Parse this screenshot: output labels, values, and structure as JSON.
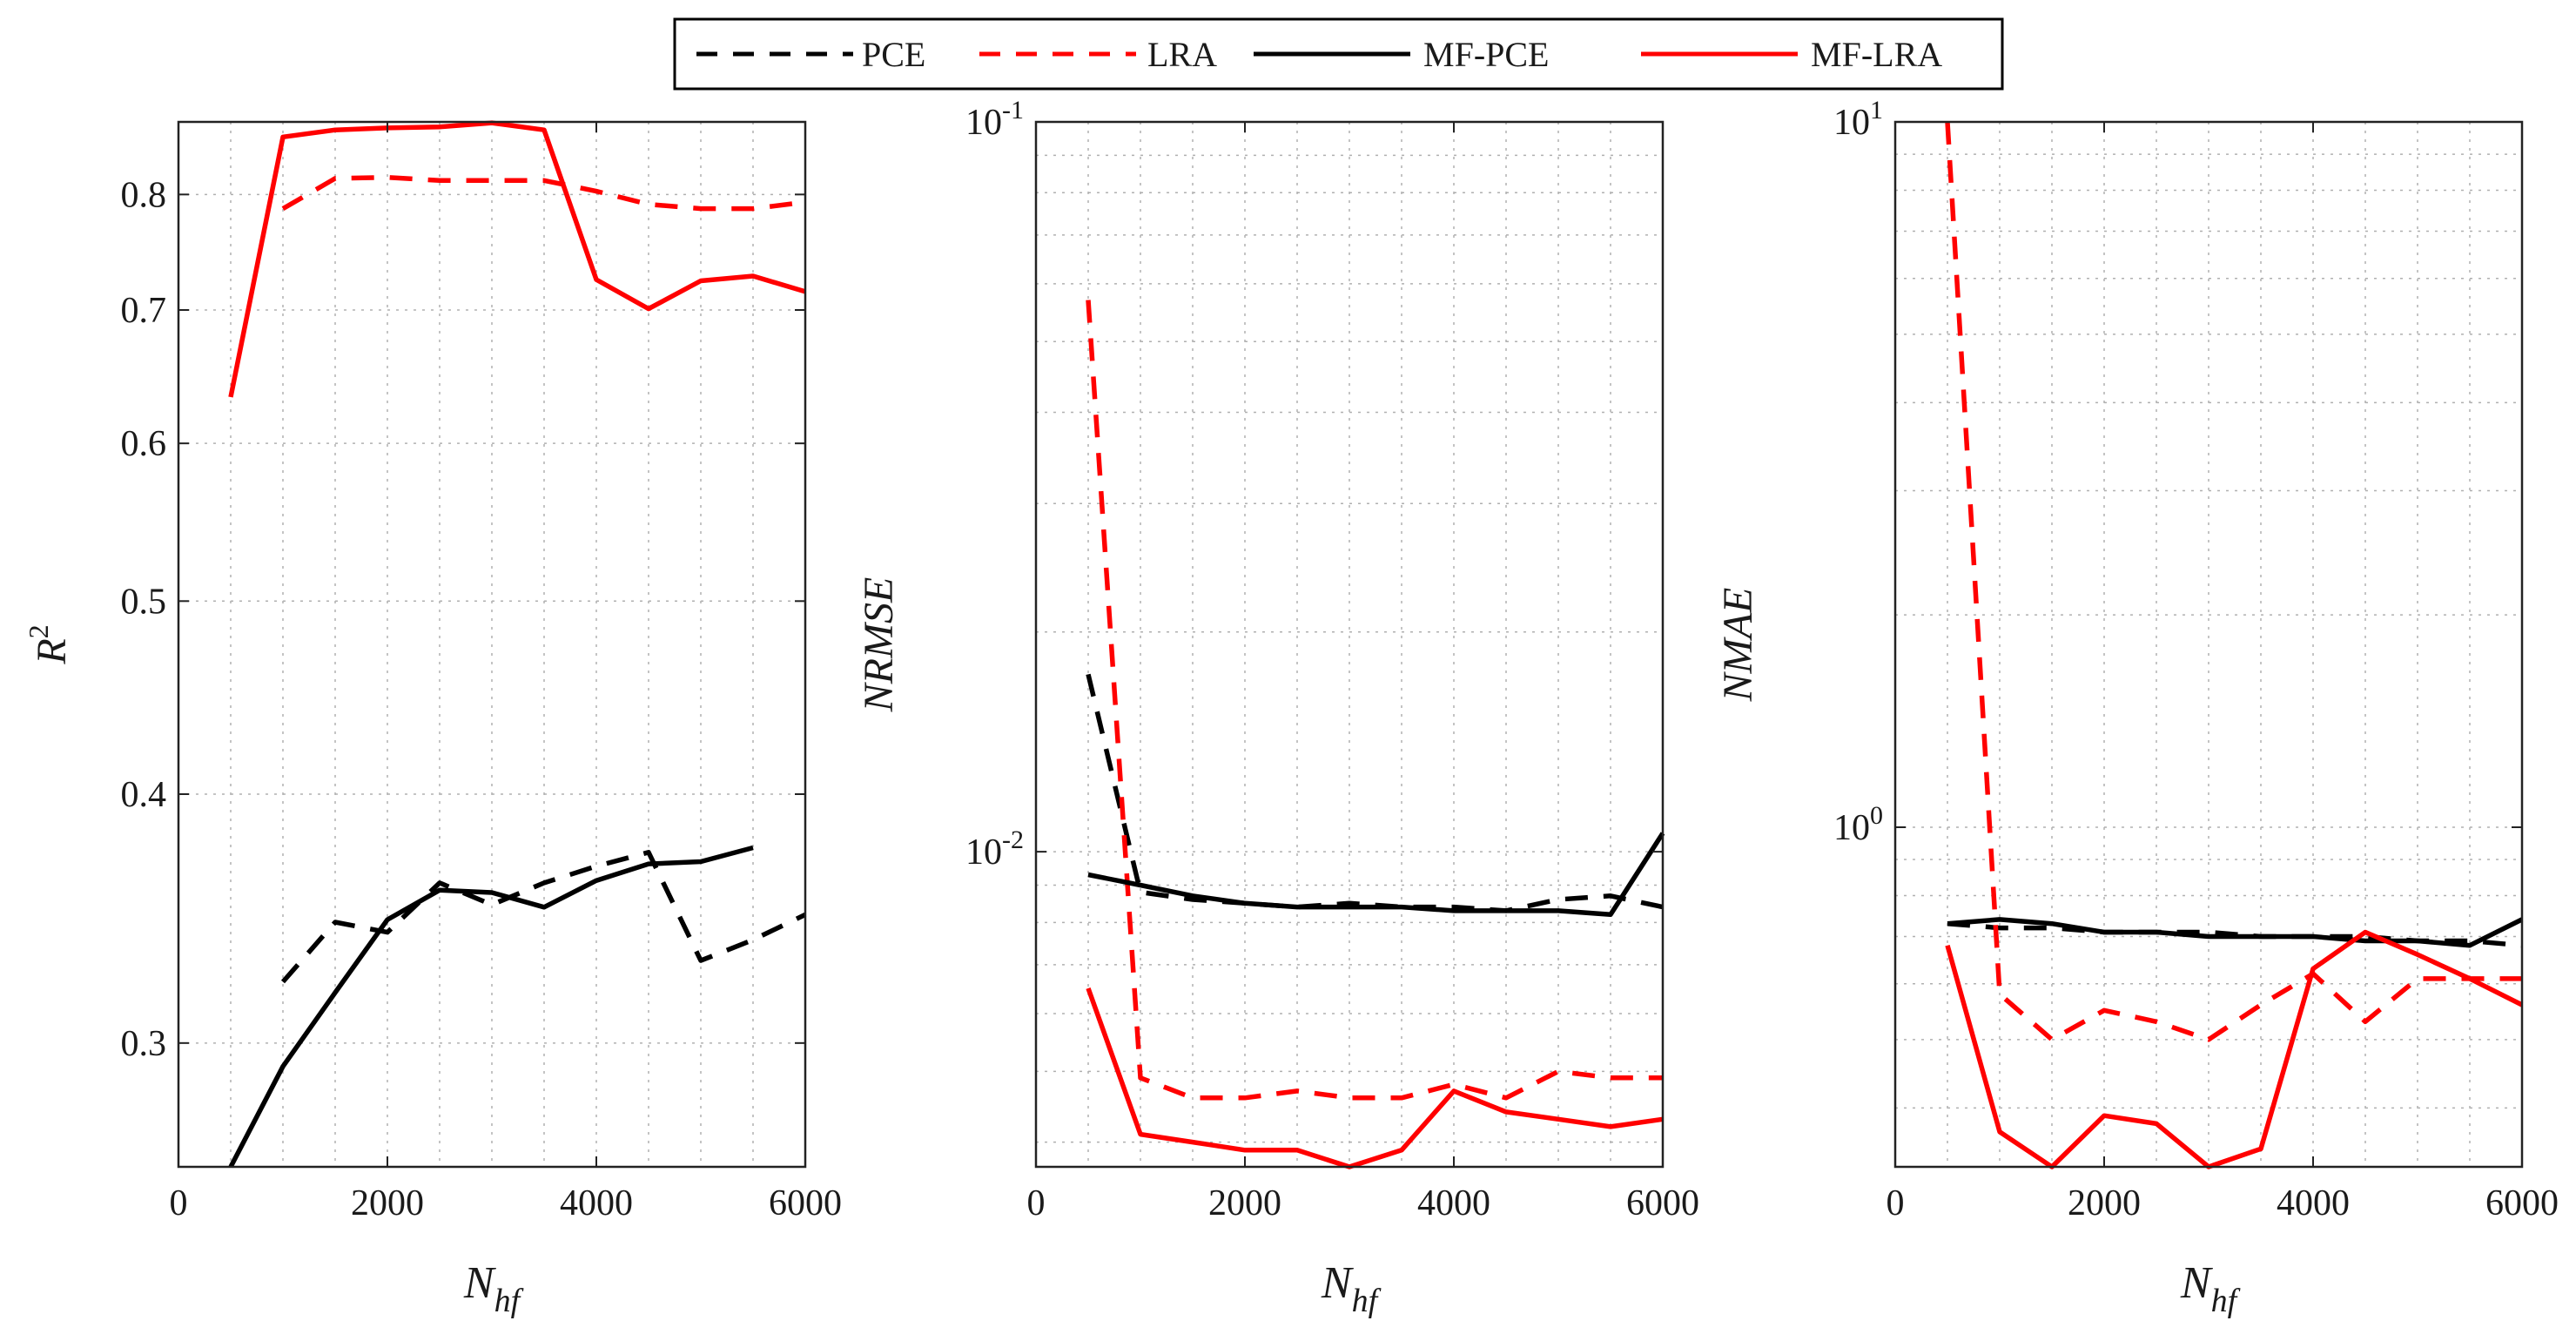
{
  "legend": [
    {
      "label": "PCE",
      "color": "#000000",
      "dash": true
    },
    {
      "label": "LRA",
      "color": "#ff0000",
      "dash": true
    },
    {
      "label": "MF-PCE",
      "color": "#000000",
      "dash": false
    },
    {
      "label": "MF-LRA",
      "color": "#ff0000",
      "dash": false
    }
  ],
  "chart_data": [
    {
      "type": "line",
      "scale": "linear-log",
      "xlabel": "N_hf",
      "ylabel": "R^2",
      "xlim": [
        0,
        6000
      ],
      "ylim": [
        0.26,
        0.87
      ],
      "grid": true,
      "xticks": [
        0,
        2000,
        4000,
        6000
      ],
      "xtick_labels": [
        "0",
        "2000",
        "4000",
        "6000"
      ],
      "yticks": [
        0.3,
        0.4,
        0.5,
        0.6,
        0.7,
        0.8
      ],
      "ytick_labels": [
        "0.3",
        "0.4",
        "0.5",
        "0.6",
        "0.7",
        "0.8"
      ],
      "series": [
        {
          "name": "PCE",
          "x": [
            1000,
            1500,
            2000,
            2500,
            3000,
            3500,
            4000,
            4500,
            5000,
            5500,
            6000
          ],
          "y": [
            0.322,
            0.345,
            0.341,
            0.361,
            0.352,
            0.361,
            0.368,
            0.374,
            0.33,
            0.338,
            0.348
          ]
        },
        {
          "name": "LRA",
          "x": [
            1000,
            1500,
            2000,
            2500,
            3000,
            3500,
            4000,
            4500,
            5000,
            5500,
            6000
          ],
          "y": [
            0.787,
            0.815,
            0.816,
            0.813,
            0.813,
            0.813,
            0.803,
            0.791,
            0.787,
            0.787,
            0.793
          ]
        },
        {
          "name": "MF-PCE",
          "x": [
            500,
            1000,
            1500,
            2000,
            2500,
            3000,
            3500,
            4000,
            4500,
            5000,
            5500
          ],
          "y": [
            0.26,
            0.292,
            0.318,
            0.346,
            0.358,
            0.357,
            0.351,
            0.362,
            0.369,
            0.37,
            0.376
          ]
        },
        {
          "name": "MF-LRA",
          "x": [
            500,
            1000,
            1500,
            2000,
            2500,
            3000,
            3500,
            4000,
            4500,
            5000,
            5500,
            6000
          ],
          "y": [
            0.633,
            0.855,
            0.862,
            0.864,
            0.865,
            0.869,
            0.862,
            0.725,
            0.701,
            0.724,
            0.728,
            0.715
          ]
        }
      ]
    },
    {
      "type": "line",
      "scale": "linear-log",
      "xlabel": "N_hf",
      "ylabel": "NRMSE",
      "xlim": [
        0,
        6000
      ],
      "ylim": [
        0.0037,
        0.1
      ],
      "grid": true,
      "xticks": [
        0,
        2000,
        4000,
        6000
      ],
      "xtick_labels": [
        "0",
        "2000",
        "4000",
        "6000"
      ],
      "yticks": [
        0.01,
        0.1
      ],
      "ytick_labels": [
        "10^-2",
        "10^-1"
      ],
      "series": [
        {
          "name": "PCE",
          "x": [
            500,
            1000,
            1500,
            2000,
            2500,
            3000,
            3500,
            4000,
            4500,
            5000,
            5500,
            6000
          ],
          "y": [
            0.0175,
            0.0088,
            0.0086,
            0.0085,
            0.0084,
            0.0085,
            0.0084,
            0.0084,
            0.0083,
            0.0086,
            0.0087,
            0.0084
          ]
        },
        {
          "name": "LRA",
          "x": [
            500,
            1000,
            1500,
            2000,
            2500,
            3000,
            3500,
            4000,
            4500,
            5000,
            5500,
            6000
          ],
          "y": [
            0.057,
            0.0049,
            0.0046,
            0.0046,
            0.0047,
            0.0046,
            0.0046,
            0.0048,
            0.0046,
            0.005,
            0.0049,
            0.0049
          ]
        },
        {
          "name": "MF-PCE",
          "x": [
            500,
            1000,
            1500,
            2000,
            2500,
            3000,
            3500,
            4000,
            4500,
            5000,
            5500,
            6000
          ],
          "y": [
            0.0093,
            0.009,
            0.0087,
            0.0085,
            0.0084,
            0.0084,
            0.0084,
            0.0083,
            0.0083,
            0.0083,
            0.0082,
            0.0106
          ]
        },
        {
          "name": "MF-LRA",
          "x": [
            500,
            1000,
            1500,
            2000,
            2500,
            3000,
            3500,
            4000,
            4500,
            5000,
            5500,
            6000
          ],
          "y": [
            0.0065,
            0.0041,
            0.004,
            0.0039,
            0.0039,
            0.0037,
            0.0039,
            0.0047,
            0.0044,
            0.0043,
            0.0042,
            0.0043
          ]
        }
      ]
    },
    {
      "type": "line",
      "scale": "linear-log",
      "xlabel": "N_hf",
      "ylabel": "NMAE",
      "xlim": [
        0,
        6000
      ],
      "ylim": [
        0.33,
        10
      ],
      "grid": true,
      "xticks": [
        0,
        2000,
        4000,
        6000
      ],
      "xtick_labels": [
        "0",
        "2000",
        "4000",
        "6000"
      ],
      "yticks": [
        1,
        10
      ],
      "ytick_labels": [
        "10^0",
        "10^1"
      ],
      "series": [
        {
          "name": "PCE",
          "x": [
            500,
            1000,
            1500,
            2000,
            2500,
            3000,
            3500,
            4000,
            4500,
            5000,
            5500,
            6000
          ],
          "y": [
            0.73,
            0.72,
            0.72,
            0.71,
            0.71,
            0.71,
            0.7,
            0.7,
            0.7,
            0.69,
            0.69,
            0.68
          ]
        },
        {
          "name": "LRA",
          "x": [
            500,
            1000,
            1500,
            2000,
            2500,
            3000,
            3500,
            4000,
            4500,
            5000,
            5500,
            6000
          ],
          "y": [
            10.0,
            0.58,
            0.5,
            0.55,
            0.53,
            0.5,
            0.56,
            0.62,
            0.53,
            0.61,
            0.61,
            0.61
          ]
        },
        {
          "name": "MF-PCE",
          "x": [
            500,
            1000,
            1500,
            2000,
            2500,
            3000,
            3500,
            4000,
            4500,
            5000,
            5500,
            6000
          ],
          "y": [
            0.73,
            0.74,
            0.73,
            0.71,
            0.71,
            0.7,
            0.7,
            0.7,
            0.69,
            0.69,
            0.68,
            0.74
          ]
        },
        {
          "name": "MF-LRA",
          "x": [
            500,
            1000,
            1500,
            2000,
            2500,
            3000,
            3500,
            4000,
            4500,
            5000,
            5500,
            6000
          ],
          "y": [
            0.68,
            0.37,
            0.33,
            0.39,
            0.38,
            0.33,
            0.35,
            0.63,
            0.71,
            0.66,
            0.61,
            0.56
          ]
        }
      ]
    }
  ]
}
